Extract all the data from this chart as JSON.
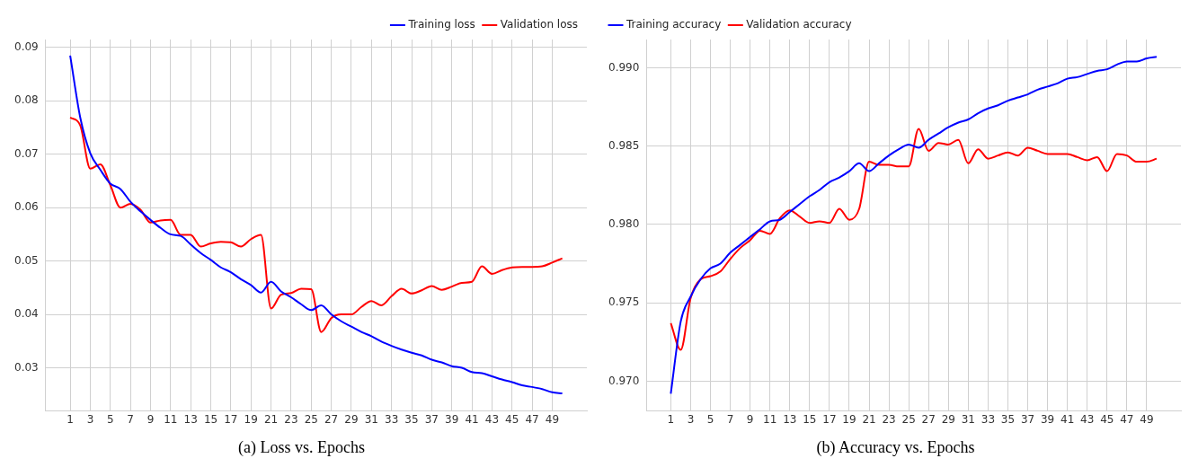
{
  "chart_data": [
    {
      "type": "line",
      "title": "(a) Loss vs. Epochs",
      "x": [
        1,
        2,
        3,
        4,
        5,
        6,
        7,
        8,
        9,
        10,
        11,
        12,
        13,
        14,
        15,
        16,
        17,
        18,
        19,
        20,
        21,
        22,
        23,
        24,
        25,
        26,
        27,
        28,
        29,
        30,
        31,
        32,
        33,
        34,
        35,
        36,
        37,
        38,
        39,
        40,
        41,
        42,
        43,
        44,
        45,
        46,
        47,
        48,
        49,
        50
      ],
      "series": [
        {
          "name": "Training loss",
          "color": "#0000ff",
          "values": [
            0.0885,
            0.0769,
            0.0702,
            0.0671,
            0.0645,
            0.0635,
            0.0611,
            0.0593,
            0.0577,
            0.0562,
            0.055,
            0.0547,
            0.0531,
            0.0515,
            0.0502,
            0.0488,
            0.0479,
            0.0466,
            0.0455,
            0.0441,
            0.0461,
            0.0443,
            0.0432,
            0.0419,
            0.0408,
            0.0417,
            0.04,
            0.0387,
            0.0377,
            0.0367,
            0.0359,
            0.0349,
            0.0341,
            0.0334,
            0.0328,
            0.0323,
            0.0315,
            0.031,
            0.0303,
            0.03,
            0.0292,
            0.029,
            0.0284,
            0.0278,
            0.0273,
            0.0267,
            0.0264,
            0.026,
            0.0254,
            0.0252
          ]
        },
        {
          "name": "Validation loss",
          "color": "#ff0000",
          "values": [
            0.0769,
            0.0754,
            0.0673,
            0.0681,
            0.0642,
            0.06,
            0.0607,
            0.0596,
            0.0572,
            0.0576,
            0.0577,
            0.0549,
            0.0549,
            0.0527,
            0.0533,
            0.0536,
            0.0535,
            0.0527,
            0.0541,
            0.0549,
            0.0411,
            0.0437,
            0.044,
            0.0448,
            0.0447,
            0.0367,
            0.0393,
            0.04,
            0.04,
            0.0414,
            0.0425,
            0.0417,
            0.0434,
            0.0448,
            0.0439,
            0.0445,
            0.0453,
            0.0446,
            0.0452,
            0.0459,
            0.0461,
            0.049,
            0.0476,
            0.0483,
            0.0488,
            0.0489,
            0.0489,
            0.049,
            0.0497,
            0.0505
          ]
        }
      ],
      "xlim": [
        -1.45,
        52.45
      ],
      "xticks": [
        1,
        3,
        5,
        7,
        9,
        11,
        13,
        15,
        17,
        19,
        21,
        23,
        25,
        27,
        29,
        31,
        33,
        35,
        37,
        39,
        41,
        43,
        45,
        47,
        49
      ],
      "ylim": [
        0.0219,
        0.0915
      ],
      "yticks": [
        0.03,
        0.04,
        0.05,
        0.06,
        0.07,
        0.08,
        0.09
      ],
      "grid": true,
      "legend": "top right",
      "marker": "none",
      "line_style": "solid"
    },
    {
      "type": "line",
      "title": "(b) Accuracy vs. Epochs",
      "x": [
        1,
        2,
        3,
        4,
        5,
        6,
        7,
        8,
        9,
        10,
        11,
        12,
        13,
        14,
        15,
        16,
        17,
        18,
        19,
        20,
        21,
        22,
        23,
        24,
        25,
        26,
        27,
        28,
        29,
        30,
        31,
        32,
        33,
        34,
        35,
        36,
        37,
        38,
        39,
        40,
        41,
        42,
        43,
        44,
        45,
        46,
        47,
        48,
        49,
        50
      ],
      "series": [
        {
          "name": "Training accuracy",
          "color": "#0000ff",
          "values": [
            0.9692,
            0.9738,
            0.9754,
            0.9765,
            0.9772,
            0.9775,
            0.9782,
            0.9787,
            0.9792,
            0.9797,
            0.9802,
            0.9803,
            0.9808,
            0.9813,
            0.9818,
            0.9822,
            0.9827,
            0.983,
            0.9834,
            0.9839,
            0.9834,
            0.9839,
            0.9844,
            0.9848,
            0.9851,
            0.9849,
            0.9854,
            0.9858,
            0.9862,
            0.9865,
            0.9867,
            0.9871,
            0.9874,
            0.9876,
            0.9879,
            0.9881,
            0.9883,
            0.9886,
            0.9888,
            0.989,
            0.9893,
            0.9894,
            0.9896,
            0.9898,
            0.9899,
            0.9902,
            0.9904,
            0.9904,
            0.9906,
            0.9907
          ]
        },
        {
          "name": "Validation accuracy",
          "color": "#ff0000",
          "values": [
            0.9737,
            0.972,
            0.9753,
            0.9765,
            0.9767,
            0.977,
            0.9778,
            0.9785,
            0.979,
            0.9796,
            0.9794,
            0.9804,
            0.9809,
            0.9805,
            0.9801,
            0.9802,
            0.9801,
            0.981,
            0.9803,
            0.981,
            0.984,
            0.9838,
            0.9838,
            0.9837,
            0.9837,
            0.9861,
            0.9847,
            0.9852,
            0.9851,
            0.9854,
            0.9839,
            0.9848,
            0.9842,
            0.9844,
            0.9846,
            0.9844,
            0.9849,
            0.9847,
            0.9845,
            0.9845,
            0.9845,
            0.9843,
            0.9841,
            0.9843,
            0.9834,
            0.9845,
            0.9844,
            0.984,
            0.984,
            0.9842
          ]
        }
      ],
      "xlim": [
        -1.45,
        52.45
      ],
      "xticks": [
        1,
        3,
        5,
        7,
        9,
        11,
        13,
        15,
        17,
        19,
        21,
        23,
        25,
        27,
        29,
        31,
        33,
        35,
        37,
        39,
        41,
        43,
        45,
        47,
        49
      ],
      "ylim": [
        0.9681,
        0.9918
      ],
      "yticks": [
        {
          "value": 0.97,
          "label": "0.970"
        },
        {
          "value": 0.975,
          "label": "0.975"
        },
        {
          "value": 0.98,
          "label": "0.980"
        },
        {
          "value": 0.985,
          "label": "0.985"
        },
        {
          "value": 0.99,
          "label": "0.990"
        }
      ],
      "grid": true,
      "legend": "top left",
      "marker": "none",
      "line_style": "solid"
    }
  ]
}
